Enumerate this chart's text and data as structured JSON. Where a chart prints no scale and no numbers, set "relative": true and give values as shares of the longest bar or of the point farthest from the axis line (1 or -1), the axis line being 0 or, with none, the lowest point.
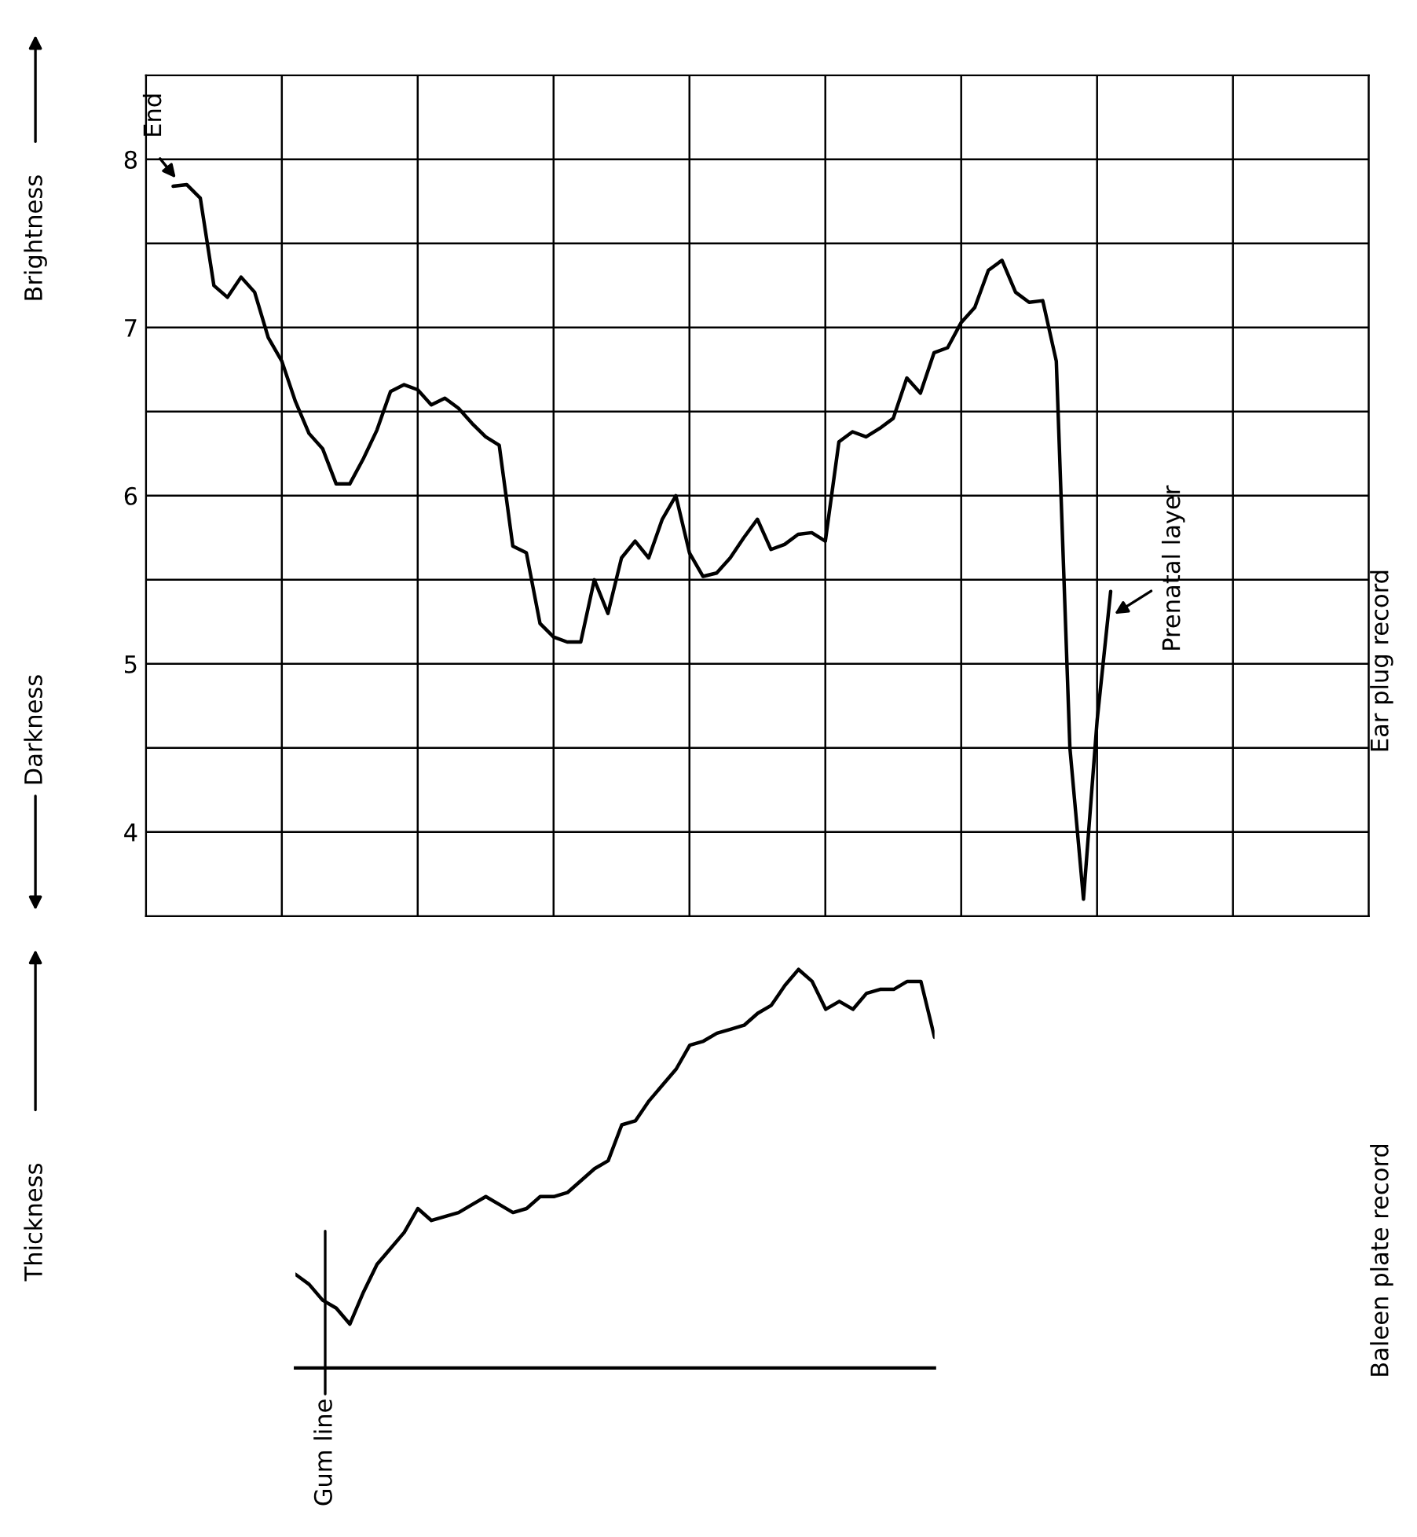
{
  "chart_data": [
    {
      "type": "line",
      "ylim": [
        3.5,
        8.5
      ],
      "categories": [
        null,
        null,
        null,
        null,
        null,
        null,
        null,
        null,
        null,
        null,
        null,
        null,
        null,
        null,
        null,
        null,
        null,
        null,
        null,
        null,
        null,
        null,
        null,
        null,
        null,
        null,
        null,
        null,
        null,
        null,
        null,
        null,
        null,
        null,
        null,
        null,
        null,
        null,
        null,
        null,
        null,
        null,
        null,
        null,
        null,
        null,
        null,
        null,
        null,
        null,
        null,
        null,
        null,
        null,
        null,
        null,
        null,
        null,
        null,
        null,
        null,
        null,
        null,
        null,
        null,
        null,
        null,
        null,
        null,
        null,
        null,
        null,
        null,
        null,
        null,
        null,
        null,
        null,
        null,
        null,
        null,
        null,
        null,
        null,
        null,
        null,
        null,
        null,
        null,
        null,
        null
      ],
      "yticks": [
        4,
        {
          "value": 4.5,
          "label": null
        },
        5,
        {
          "value": 5.5,
          "label": null
        },
        6,
        {
          "value": 6.5,
          "label": null
        },
        7,
        {
          "value": 7.5,
          "label": null
        },
        8
      ],
      "grid": true,
      "series": [
        {
          "color": "#000000",
          "values": [
            null,
            null,
            7.84,
            7.85,
            7.77,
            7.25,
            7.18,
            7.3,
            7.21,
            6.94,
            6.8,
            6.56,
            6.37,
            6.28,
            6.07,
            6.07,
            6.22,
            6.39,
            6.62,
            6.66,
            6.63,
            6.54,
            6.58,
            6.52,
            6.43,
            6.35,
            6.3,
            5.7,
            5.66,
            5.24,
            5.16,
            5.13,
            5.13,
            5.5,
            5.3,
            5.63,
            5.73,
            5.63,
            5.86,
            6.0,
            5.66,
            5.52,
            5.54,
            5.63,
            5.75,
            5.86,
            5.68,
            5.71,
            5.77,
            5.78,
            5.73,
            6.32,
            6.38,
            6.35,
            6.4,
            6.46,
            6.7,
            6.61,
            6.85,
            6.88,
            7.03,
            7.12,
            7.34,
            7.4,
            7.21,
            7.15,
            7.16,
            6.8,
            4.5,
            3.6,
            4.66,
            5.43,
            null,
            null,
            null,
            null,
            null,
            null,
            null,
            null,
            null,
            null,
            null,
            null,
            null,
            null,
            null,
            null,
            null,
            null,
            null
          ]
        }
      ],
      "annotations": [
        "Brightness",
        "Darkness",
        "Ear plug record",
        "End",
        "Prenatal layer"
      ]
    },
    {
      "type": "line",
      "relative": true,
      "categories": [
        null,
        null,
        null,
        null,
        null,
        null,
        null,
        null,
        null,
        null,
        null,
        null,
        null,
        null,
        null,
        null,
        null,
        null,
        null,
        null,
        null,
        null,
        null,
        null,
        null,
        null,
        null,
        null,
        null,
        null,
        null,
        null,
        null,
        null,
        null,
        null,
        null,
        null,
        null,
        null,
        null,
        null,
        null,
        null,
        null,
        null,
        null,
        null
      ],
      "series": [
        {
          "color": "#000000",
          "values": [
            0.235,
            0.21,
            0.17,
            0.15,
            0.11,
            0.19,
            0.26,
            0.3,
            0.34,
            0.4,
            0.37,
            0.38,
            0.39,
            0.41,
            0.43,
            0.41,
            0.39,
            0.4,
            0.43,
            0.43,
            0.44,
            0.47,
            0.5,
            0.52,
            0.61,
            0.62,
            0.67,
            0.71,
            0.75,
            0.81,
            0.82,
            0.84,
            0.85,
            0.86,
            0.89,
            0.91,
            0.96,
            1.0,
            0.97,
            0.9,
            0.92,
            0.9,
            0.94,
            0.95,
            0.95,
            0.97,
            0.97,
            0.83
          ]
        }
      ],
      "annotations": [
        "Thickness",
        "Baleen plate record",
        "Gum line"
      ]
    }
  ]
}
